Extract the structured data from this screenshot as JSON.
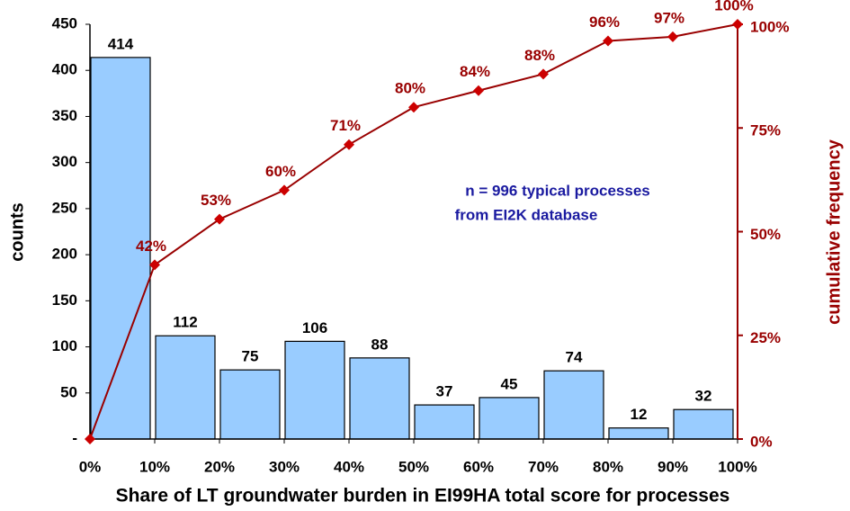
{
  "chart_data": {
    "type": "histogram",
    "title": "Share of LT groundwater burden in EI99HA total score for processes",
    "ylabel": "counts",
    "y2label": "cumulative frequency",
    "annotation": [
      "n = 996 typical processes",
      "from EI2K database"
    ],
    "bins": [
      0,
      10,
      20,
      30,
      40,
      50,
      60,
      70,
      80,
      90,
      100
    ],
    "values": [
      414,
      112,
      75,
      106,
      88,
      37,
      45,
      74,
      12,
      32
    ],
    "color": "#99ccff",
    "xlim": [
      0,
      100
    ],
    "xticks": [
      {
        "value": 0,
        "label": "0%"
      },
      {
        "value": 10,
        "label": "10%"
      },
      {
        "value": 20,
        "label": "20%"
      },
      {
        "value": 30,
        "label": "30%"
      },
      {
        "value": 40,
        "label": "40%"
      },
      {
        "value": 50,
        "label": "50%"
      },
      {
        "value": 60,
        "label": "60%"
      },
      {
        "value": 70,
        "label": "70%"
      },
      {
        "value": 80,
        "label": "80%"
      },
      {
        "value": 90,
        "label": "90%"
      },
      {
        "value": 100,
        "label": "100%"
      }
    ],
    "ylim": [
      0,
      450
    ],
    "yticks": [
      {
        "value": 0,
        "label": "-"
      },
      50,
      100,
      150,
      200,
      250,
      300,
      350,
      400,
      450
    ],
    "y2lim": [
      0,
      100
    ],
    "y2ticks": [
      {
        "value": 0,
        "label": "0%"
      },
      {
        "value": 25,
        "label": "25%"
      },
      {
        "value": 50,
        "label": "50%"
      },
      {
        "value": 75,
        "label": "75%"
      },
      {
        "value": 100,
        "label": "100%"
      }
    ],
    "series": [
      {
        "name": "cumulative frequency",
        "axis": "y2",
        "color": "#990000",
        "marker_color": "#cc0000",
        "x": [
          0,
          10,
          20,
          30,
          40,
          50,
          60,
          70,
          80,
          90,
          100
        ],
        "values": [
          0,
          42,
          53,
          60,
          71,
          80,
          84,
          88,
          96,
          97,
          100
        ],
        "value_labels": [
          null,
          "42%",
          "53%",
          "60%",
          "71%",
          "80%",
          "84%",
          "88%",
          "96%",
          "97%",
          "100%"
        ]
      }
    ]
  }
}
